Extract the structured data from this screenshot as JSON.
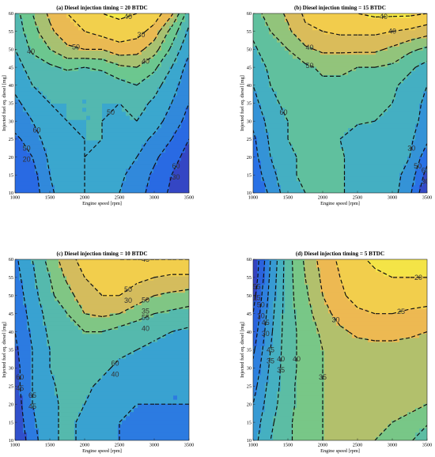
{
  "chart_data": [
    {
      "type": "heatmap",
      "title": "(a) Diesel injection timing = 20 BTDC",
      "xlabel": "Engine speed [rpm]",
      "ylabel": "Injected fuel eq. diesel [mg]",
      "xlim": [
        1000,
        3500
      ],
      "ylim": [
        10,
        60
      ],
      "xticks": [
        "1000",
        "1500",
        "2000",
        "2500",
        "3000",
        "3500"
      ],
      "yticks": [
        "10",
        "15",
        "20",
        "25",
        "30",
        "35",
        "40",
        "45",
        "50",
        "55",
        "60"
      ],
      "contour_labels": [
        "60",
        "50",
        "60",
        "50",
        "40",
        "40",
        "50",
        "30",
        "40",
        "30",
        "20"
      ],
      "grid": {
        "x": [
          1000,
          1250,
          1500,
          1750,
          2000,
          2250,
          2500,
          2750,
          3000,
          3250,
          3500
        ],
        "y": [
          10,
          15,
          20,
          25,
          30,
          35,
          40,
          45,
          50,
          55,
          60
        ],
        "z": [
          [
            26,
            27,
            34,
            38,
            40,
            38,
            35,
            32,
            28,
            24,
            20
          ],
          [
            27,
            28,
            35,
            38,
            40,
            38,
            36,
            33,
            29,
            25,
            21
          ],
          [
            28,
            30,
            36,
            39,
            40,
            39,
            37,
            35,
            31,
            27,
            23
          ],
          [
            29,
            32,
            38,
            39,
            40,
            40,
            38,
            37,
            34,
            30,
            25
          ],
          [
            32,
            35,
            39,
            40,
            40,
            40,
            39,
            40,
            37,
            33,
            28
          ],
          [
            34,
            37,
            40,
            40,
            40,
            40,
            40,
            42,
            39,
            35,
            30
          ],
          [
            36,
            40,
            41,
            40,
            40,
            41,
            43,
            45,
            42,
            37,
            32
          ],
          [
            38,
            42,
            44,
            46,
            45,
            46,
            49,
            50,
            46,
            40,
            33
          ],
          [
            40,
            46,
            50,
            54,
            55,
            55,
            58,
            57,
            52,
            44,
            36
          ],
          [
            42,
            48,
            54,
            58,
            60,
            62,
            63,
            62,
            58,
            48,
            39
          ],
          [
            43,
            50,
            56,
            60,
            64,
            65,
            66,
            65,
            63,
            56,
            42
          ]
        ]
      }
    },
    {
      "type": "heatmap",
      "title": "(b) Diesel injection timing = 15 BTDC",
      "xlabel": "Engine speed [rpm]",
      "ylabel": "Injected fuel eq. diesel [mg]",
      "xlim": [
        1000,
        3500
      ],
      "ylim": [
        10,
        60
      ],
      "xticks": [
        "1000",
        "1500",
        "2000",
        "2500",
        "3000",
        "3500"
      ],
      "yticks": [
        "10",
        "15",
        "20",
        "25",
        "30",
        "35",
        "40",
        "45",
        "50",
        "55",
        "60"
      ],
      "contour_labels": [
        "60",
        "50",
        "30",
        "60",
        "50",
        "40",
        "40",
        "40",
        "30"
      ],
      "grid": {
        "x": [
          1000,
          1250,
          1500,
          1750,
          2000,
          2250,
          2500,
          2750,
          3000,
          3250,
          3500
        ],
        "y": [
          10,
          15,
          20,
          25,
          30,
          35,
          40,
          45,
          50,
          55,
          60
        ],
        "z": [
          [
            30,
            36,
            43,
            45,
            46,
            46,
            42,
            41,
            42,
            36,
            25
          ],
          [
            32,
            38,
            44,
            46,
            46,
            46,
            42,
            41,
            42,
            38,
            28
          ],
          [
            33,
            40,
            44,
            46,
            46,
            46,
            42,
            41,
            43,
            40,
            32
          ],
          [
            34,
            41,
            45,
            46,
            46,
            45,
            41,
            41,
            43,
            41,
            36
          ],
          [
            36,
            42,
            45,
            46,
            47,
            47,
            46,
            45,
            44,
            42,
            38
          ],
          [
            38,
            44,
            46,
            47,
            48,
            48,
            47,
            46,
            45,
            42,
            39
          ],
          [
            40,
            45,
            46,
            48,
            49,
            49,
            48,
            47,
            46,
            43,
            40
          ],
          [
            42,
            46,
            47,
            49,
            51,
            51,
            50,
            50,
            49,
            46,
            43
          ],
          [
            44,
            48,
            50,
            54,
            56,
            56,
            56,
            56,
            54,
            51,
            49
          ],
          [
            46,
            50,
            54,
            59,
            60,
            61,
            61,
            61,
            60,
            59,
            57
          ],
          [
            48,
            52,
            56,
            61,
            63,
            64,
            65,
            66,
            66,
            66,
            65
          ]
        ]
      }
    },
    {
      "type": "heatmap",
      "title": "(c) Diesel injection timing = 10 BTDC",
      "xlabel": "Engine speed [rpm]",
      "ylabel": "Injected fuel eq. diesel [mg]",
      "xlim": [
        1000,
        3500
      ],
      "ylim": [
        10,
        60
      ],
      "xticks": [
        "1000",
        "1500",
        "2000",
        "2500",
        "3000",
        "3500"
      ],
      "yticks": [
        "10",
        "15",
        "20",
        "25",
        "30",
        "35",
        "40",
        "45",
        "50",
        "55",
        "60"
      ],
      "contour_labels": [
        "60",
        "65",
        "60",
        "55",
        "50",
        "50",
        "45",
        "45",
        "45",
        "40",
        "40",
        "35",
        "30"
      ],
      "grid": {
        "x": [
          1000,
          1250,
          1500,
          1750,
          2000,
          2250,
          2500,
          2750,
          3000,
          3250,
          3500
        ],
        "y": [
          10,
          15,
          20,
          25,
          30,
          35,
          40,
          45,
          50,
          55,
          60
        ],
        "z": [
          [
            30,
            38,
            44,
            46,
            44,
            41,
            40,
            39,
            39,
            39,
            39
          ],
          [
            31,
            39,
            44,
            46,
            44,
            41,
            40,
            39,
            39,
            39,
            39
          ],
          [
            32,
            40,
            44,
            46,
            45,
            42,
            41,
            40,
            40,
            40,
            40
          ],
          [
            33,
            40,
            44,
            47,
            46,
            44,
            42,
            41,
            40,
            40,
            40
          ],
          [
            33,
            40,
            45,
            47,
            47,
            46,
            44,
            43,
            42,
            41,
            41
          ],
          [
            34,
            40,
            45,
            48,
            47,
            47,
            46,
            45,
            44,
            43,
            42
          ],
          [
            35,
            41,
            46,
            48,
            50,
            50,
            48,
            47,
            46,
            45,
            44
          ],
          [
            36,
            42,
            47,
            50,
            55,
            56,
            55,
            52,
            50,
            49,
            48
          ],
          [
            37,
            43,
            49,
            53,
            58,
            60,
            60,
            58,
            55,
            54,
            53
          ],
          [
            38,
            44,
            50,
            56,
            60,
            62,
            62,
            61,
            60,
            59,
            59
          ],
          [
            39,
            45,
            52,
            58,
            62,
            64,
            65,
            65,
            65,
            65,
            65
          ]
        ]
      }
    },
    {
      "type": "heatmap",
      "title": "(d) Diesel injection timing = 5 BTDC",
      "xlabel": "Engine speed [rpm]",
      "ylabel": "Injected fuel eq. diesel [mg]",
      "xlim": [
        1000,
        3500
      ],
      "ylim": [
        10,
        60
      ],
      "xticks": [
        "1000",
        "1500",
        "2000",
        "2500",
        "3000",
        "3500"
      ],
      "yticks": [
        "10",
        "15",
        "20",
        "25",
        "30",
        "35",
        "40",
        "45",
        "50",
        "55",
        "60"
      ],
      "contour_labels": [
        "55",
        "50",
        "45",
        "45",
        "40",
        "40",
        "35",
        "30",
        "25",
        "20",
        "15",
        "10",
        "30",
        "35",
        "35"
      ],
      "grid": {
        "x": [
          1000,
          1250,
          1500,
          1750,
          2000,
          2250,
          2500,
          2750,
          3000,
          3250,
          3500
        ],
        "y": [
          10,
          15,
          20,
          25,
          30,
          35,
          40,
          45,
          50,
          55,
          60
        ],
        "z": [
          [
            23,
            30,
            34,
            38,
            40,
            40,
            40,
            40,
            39,
            36,
            30
          ],
          [
            22,
            29,
            34,
            38,
            40,
            41,
            41,
            41,
            40,
            39,
            36
          ],
          [
            20,
            28,
            33,
            38,
            40,
            41,
            41,
            41,
            41,
            41,
            40
          ],
          [
            18,
            27,
            33,
            38,
            40,
            41,
            41,
            41,
            41,
            41,
            41
          ],
          [
            16,
            26,
            33,
            37,
            40,
            41,
            42,
            42,
            42,
            42,
            42
          ],
          [
            14,
            25,
            33,
            37,
            40,
            42,
            43,
            43,
            43,
            43,
            43
          ],
          [
            12,
            24,
            33,
            37,
            41,
            44,
            46,
            47,
            47,
            46,
            45
          ],
          [
            10,
            23,
            33,
            38,
            43,
            47,
            49,
            50,
            50,
            49,
            48
          ],
          [
            8,
            22,
            33,
            39,
            45,
            49,
            52,
            53,
            53,
            53,
            53
          ],
          [
            6,
            21,
            33,
            40,
            46,
            50,
            53,
            54,
            55,
            55,
            55
          ],
          [
            5,
            20,
            33,
            41,
            47,
            51,
            54,
            56,
            57,
            57,
            57
          ]
        ]
      }
    }
  ]
}
